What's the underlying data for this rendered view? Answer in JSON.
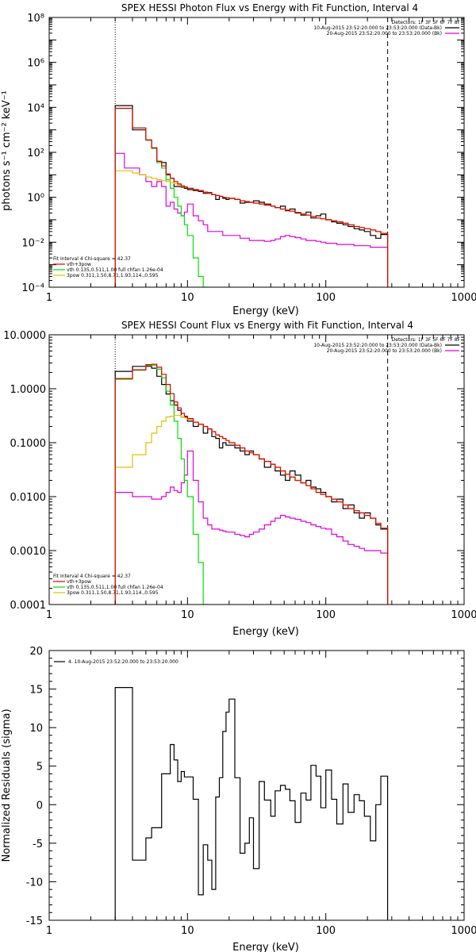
{
  "chart_data": [
    {
      "type": "line",
      "title": "SPEX HESSI Photon Flux vs Energy with Fit Function, Interval 4",
      "xlabel": "Energy (keV)",
      "ylabel": "photons s⁻¹ cm⁻² keV⁻¹",
      "xscale": "log",
      "yscale": "log",
      "xlim": [
        1,
        1000
      ],
      "ylim": [
        0.0001,
        100000000
      ],
      "x_ticks": [
        "1",
        "10",
        "100",
        "1000"
      ],
      "y_ticks": [
        "10⁻⁴",
        "10⁻²",
        "10⁰",
        "10²",
        "10⁴",
        "10⁶",
        "10⁸"
      ],
      "vlines": [
        {
          "x": 3,
          "style": "dotted"
        },
        {
          "x": 280,
          "style": "dashed"
        }
      ],
      "legend_top_right": [
        "Detectors: 1F 3F 5F 6F 7F 8F",
        "10-Aug-2015 23:52:20.000 to 23:53:20.000 (Data-Bk)",
        "20-Aug-2015 23:52:20.000 to 23:53:20.000 (Bk)"
      ],
      "legend_bottom_left": [
        "Fit Interval 4    Chi-square = 42.37",
        "vth+3pow",
        "vth 0.135,0.511,1.00  full chfan 1.26e-04",
        "3pow 0.311,1.50,8.71,1.93,114.,0.595"
      ],
      "edges": [
        3,
        3.5,
        4,
        4.5,
        5,
        5.5,
        6,
        6.5,
        7,
        7.5,
        8,
        8.5,
        9,
        9.5,
        10,
        11,
        12,
        13,
        14,
        15,
        16,
        17,
        18,
        19,
        20,
        22,
        24,
        26,
        28,
        30,
        33,
        36,
        40,
        43,
        47,
        51,
        55,
        60,
        66,
        72,
        78,
        85,
        92,
        100,
        110,
        120,
        133,
        145,
        160,
        175,
        190,
        210,
        230,
        250,
        280
      ],
      "series": [
        {
          "name": "Data-Bk",
          "color": "#000000",
          "values": [
            12000,
            12000,
            1000,
            1000,
            350,
            150,
            40,
            35,
            10,
            7,
            3,
            3,
            2.8,
            2.5,
            2.2,
            2,
            1.8,
            1.5,
            1.6,
            1.3,
            0.8,
            1.1,
            0.9,
            0.8,
            0.9,
            0.8,
            0.55,
            0.6,
            0.6,
            0.7,
            0.6,
            0.5,
            0.4,
            0.35,
            0.4,
            0.25,
            0.3,
            0.2,
            0.16,
            0.22,
            0.12,
            0.15,
            0.18,
            0.1,
            0.08,
            0.07,
            0.06,
            0.05,
            0.04,
            0.035,
            0.03,
            0.02,
            0.015,
            0.022
          ]
        },
        {
          "name": "Bk",
          "color": "#e000e0",
          "values": [
            90,
            20,
            20,
            10,
            5,
            3,
            5,
            3,
            0.4,
            0.6,
            0.3,
            0.2,
            0.15,
            0.22,
            0.5,
            0.15,
            0.09,
            0.06,
            0.03,
            0.03,
            0.03,
            0.03,
            0.02,
            0.02,
            0.02,
            0.02,
            0.015,
            0.015,
            0.012,
            0.012,
            0.012,
            0.011,
            0.012,
            0.014,
            0.018,
            0.02,
            0.018,
            0.016,
            0.014,
            0.012,
            0.012,
            0.011,
            0.01,
            0.009,
            0.009,
            0.008,
            0.008,
            0.008,
            0.007,
            0.007,
            0.007,
            0.006,
            0.006,
            0.006
          ]
        },
        {
          "name": "vth",
          "color": "#00e000",
          "values": [
            9000,
            9000,
            1200,
            1200,
            350,
            150,
            35,
            20,
            6,
            2.5,
            1,
            0.4,
            0.15,
            0.06,
            0.02,
            0.002,
            0.0003,
            5e-05
          ]
        },
        {
          "name": "3pow",
          "color": "#e0c000",
          "values": [
            15,
            15,
            12,
            10,
            8,
            7,
            6,
            5.5,
            5,
            4.5,
            4,
            3.5,
            3,
            2.8,
            2.5,
            2.2,
            2,
            1.7,
            1.5,
            1.3,
            1.2,
            1.1,
            1,
            0.95,
            0.9,
            0.8,
            0.7,
            0.65,
            0.6,
            0.55,
            0.5,
            0.45,
            0.4,
            0.35,
            0.3,
            0.27,
            0.24,
            0.21,
            0.18,
            0.16,
            0.14,
            0.12,
            0.11,
            0.1,
            0.09,
            0.08,
            0.07,
            0.06,
            0.05,
            0.045,
            0.04,
            0.035,
            0.03,
            0.025
          ]
        },
        {
          "name": "vth+3pow",
          "color": "#e00000",
          "values": [
            9100,
            9100,
            1200,
            1200,
            360,
            160,
            40,
            25,
            11,
            7,
            5,
            3.9,
            3.2,
            2.9,
            2.5,
            2.2,
            2,
            1.7,
            1.5,
            1.3,
            1.2,
            1.1,
            1,
            0.95,
            0.9,
            0.8,
            0.7,
            0.65,
            0.6,
            0.55,
            0.5,
            0.45,
            0.4,
            0.35,
            0.3,
            0.27,
            0.24,
            0.21,
            0.18,
            0.16,
            0.14,
            0.12,
            0.11,
            0.1,
            0.09,
            0.08,
            0.07,
            0.06,
            0.05,
            0.045,
            0.04,
            0.035,
            0.03,
            0.025
          ]
        }
      ]
    },
    {
      "type": "line",
      "title": "SPEX HESSI Count Flux vs Energy with Fit Function, Interval 4",
      "xlabel": "Energy (keV)",
      "ylabel": "",
      "xscale": "log",
      "yscale": "log",
      "xlim": [
        1,
        1000
      ],
      "ylim": [
        0.0001,
        10
      ],
      "x_ticks": [
        "1",
        "10",
        "100",
        "1000"
      ],
      "y_ticks": [
        "0.0001",
        "0.0010",
        "0.0100",
        "0.1000",
        "1.0000",
        "10.0000"
      ],
      "vlines": [
        {
          "x": 3,
          "style": "dotted"
        },
        {
          "x": 280,
          "style": "dashed"
        }
      ],
      "legend_top_right": [
        "Detectors: 1F 3F 5F 6F 7F 8F",
        "10-Aug-2015 23:52:20.000 to 23:53:20.000 (Data-Bk)",
        "20-Aug-2015 23:52:20.000 to 23:53:20.000 (Bk)"
      ],
      "legend_bottom_left": [
        "Fit Interval 4    Chi-square = 42.37",
        "vth+3pow",
        "vth 0.135,0.511,1.00  full chfan 1.26e-04",
        "3pow 0.311,1.50,8.71,1.93,114.,0.595"
      ],
      "edges": [
        3,
        3.5,
        4,
        4.5,
        5,
        5.5,
        6,
        6.5,
        7,
        7.5,
        8,
        8.5,
        9,
        9.5,
        10,
        11,
        12,
        13,
        14,
        15,
        16,
        17,
        18,
        19,
        20,
        22,
        24,
        26,
        28,
        30,
        33,
        36,
        40,
        43,
        47,
        51,
        55,
        60,
        66,
        72,
        78,
        85,
        92,
        100,
        110,
        120,
        133,
        145,
        160,
        175,
        190,
        210,
        230,
        250,
        280
      ],
      "series": [
        {
          "name": "Data-Bk",
          "color": "#000000",
          "values": [
            2.1,
            2.1,
            2.6,
            2.6,
            2.6,
            2.4,
            1.7,
            1.2,
            0.8,
            0.6,
            0.5,
            0.4,
            0.3,
            0.3,
            0.25,
            0.2,
            0.22,
            0.15,
            0.18,
            0.13,
            0.12,
            0.08,
            0.1,
            0.09,
            0.09,
            0.08,
            0.07,
            0.06,
            0.07,
            0.06,
            0.05,
            0.035,
            0.04,
            0.03,
            0.025,
            0.02,
            0.03,
            0.025,
            0.018,
            0.02,
            0.015,
            0.014,
            0.012,
            0.01,
            0.008,
            0.009,
            0.006,
            0.007,
            0.005,
            0.004,
            0.005,
            0.004,
            0.003,
            0.0025
          ]
        },
        {
          "name": "Bk",
          "color": "#e000e0",
          "values": [
            0.012,
            0.012,
            0.01,
            0.01,
            0.01,
            0.009,
            0.009,
            0.01,
            0.012,
            0.015,
            0.013,
            0.012,
            0.018,
            0.025,
            0.07,
            0.02,
            0.008,
            0.004,
            0.003,
            0.0025,
            0.0025,
            0.0024,
            0.0023,
            0.0022,
            0.0022,
            0.002,
            0.0019,
            0.0018,
            0.002,
            0.0022,
            0.0025,
            0.003,
            0.0035,
            0.004,
            0.0045,
            0.0042,
            0.004,
            0.0038,
            0.0035,
            0.0033,
            0.003,
            0.0028,
            0.0026,
            0.0025,
            0.002,
            0.0018,
            0.0015,
            0.0013,
            0.0012,
            0.0011,
            0.001,
            0.001,
            0.001,
            0.0009
          ]
        },
        {
          "name": "vth",
          "color": "#00e000",
          "values": [
            1.5,
            1.5,
            2.2,
            2.2,
            2.7,
            2.7,
            2.3,
            1.6,
            0.9,
            0.5,
            0.25,
            0.12,
            0.05,
            0.02,
            0.01,
            0.002,
            0.0006,
            0.0001
          ]
        },
        {
          "name": "3pow",
          "color": "#e0c000",
          "values": [
            0.035,
            0.035,
            0.06,
            0.06,
            0.1,
            0.15,
            0.2,
            0.25,
            0.3,
            0.31,
            0.32,
            0.32,
            0.3,
            0.29,
            0.27,
            0.24,
            0.22,
            0.2,
            0.18,
            0.16,
            0.14,
            0.13,
            0.12,
            0.11,
            0.1,
            0.09,
            0.08,
            0.07,
            0.065,
            0.06,
            0.05,
            0.045,
            0.04,
            0.035,
            0.03,
            0.026,
            0.023,
            0.02,
            0.018,
            0.016,
            0.014,
            0.012,
            0.011,
            0.01,
            0.009,
            0.008,
            0.007,
            0.006,
            0.0055,
            0.005,
            0.0045,
            0.004,
            0.0032,
            0.0026
          ]
        },
        {
          "name": "vth+3pow",
          "color": "#e00000",
          "values": [
            1.55,
            1.55,
            2.25,
            2.25,
            2.8,
            2.85,
            2.5,
            1.85,
            1.2,
            0.81,
            0.57,
            0.44,
            0.35,
            0.31,
            0.28,
            0.24,
            0.22,
            0.2,
            0.18,
            0.16,
            0.14,
            0.13,
            0.12,
            0.11,
            0.1,
            0.09,
            0.08,
            0.07,
            0.065,
            0.06,
            0.05,
            0.045,
            0.04,
            0.035,
            0.03,
            0.026,
            0.023,
            0.02,
            0.018,
            0.016,
            0.014,
            0.012,
            0.011,
            0.01,
            0.009,
            0.008,
            0.007,
            0.006,
            0.0055,
            0.005,
            0.0045,
            0.004,
            0.0032,
            0.0026
          ]
        }
      ]
    },
    {
      "type": "line",
      "title": "",
      "xlabel": "Energy (keV)",
      "ylabel": "Normalized Residuals (sigma)",
      "xscale": "log",
      "yscale": "linear",
      "xlim": [
        1,
        1000
      ],
      "ylim": [
        -15,
        20
      ],
      "x_ticks": [
        "1",
        "10",
        "100",
        "1000"
      ],
      "y_ticks": [
        "-15",
        "-10",
        "-5",
        "0",
        "5",
        "10",
        "15",
        "20"
      ],
      "legend_top_left": [
        "4. 10-Aug-2015 23:52:20.000 to 23:53:20.000"
      ],
      "edges": [
        3,
        4,
        4.5,
        5,
        5.5,
        6,
        6.5,
        7,
        7.5,
        8,
        8.5,
        9,
        9.5,
        10,
        11,
        12,
        13,
        14,
        15,
        16,
        17,
        18,
        19,
        20,
        22,
        24,
        26,
        28,
        30,
        33,
        36,
        40,
        43,
        47,
        51,
        55,
        60,
        66,
        72,
        78,
        85,
        92,
        100,
        110,
        120,
        133,
        145,
        160,
        175,
        190,
        210,
        230,
        250,
        280
      ],
      "series": [
        {
          "name": "4. 10-Aug-2015 23:52:20.000 to 23:53:20.000",
          "color": "#000000",
          "values": [
            15.2,
            -7.2,
            -7.2,
            -4.3,
            -3,
            -3,
            4,
            4,
            7.8,
            5.8,
            3,
            4.3,
            3.6,
            3.6,
            0.7,
            -11.7,
            -5.2,
            -7.2,
            -11,
            1,
            3.5,
            9.5,
            12,
            13.7,
            3.5,
            -6.3,
            -5,
            -1.7,
            -8.3,
            3,
            0.6,
            -1.5,
            1.8,
            2.5,
            2,
            0.5,
            -2.3,
            1.5,
            0.6,
            5.1,
            3.7,
            -0.4,
            4.5,
            0.7,
            -2.5,
            2.7,
            -1,
            1.3,
            0.5,
            -1.5,
            -4.7,
            0,
            3.7
          ]
        }
      ]
    }
  ]
}
